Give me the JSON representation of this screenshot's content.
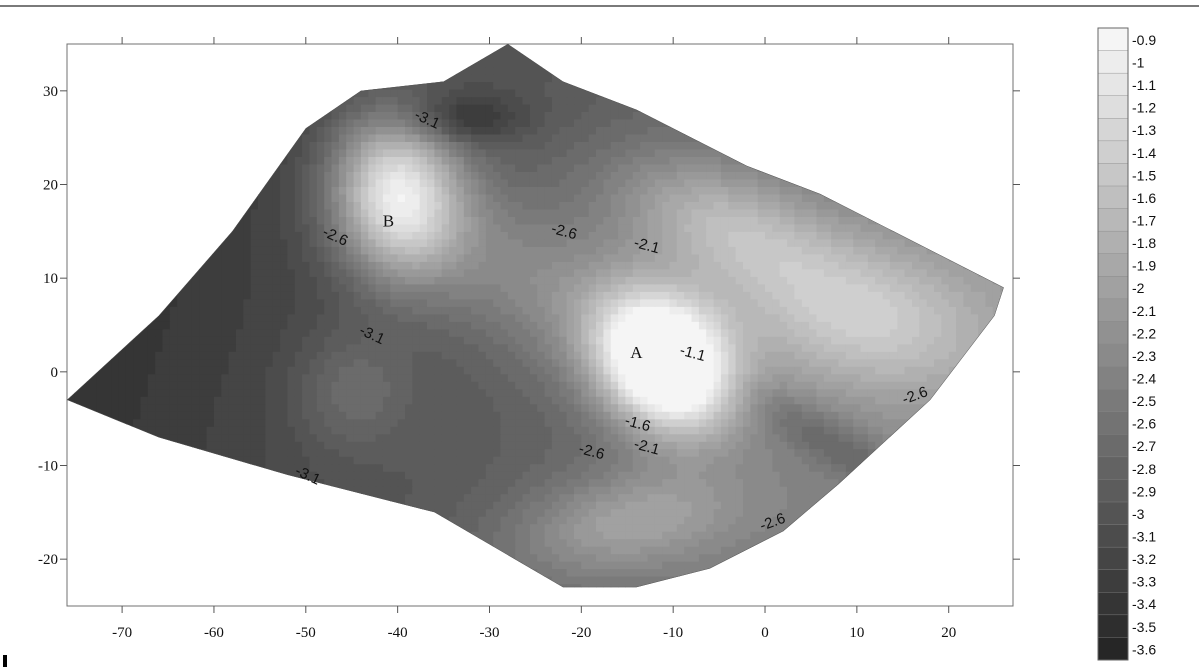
{
  "chart_data": {
    "type": "heatmap",
    "subtype": "filled-contour",
    "title": "",
    "xlabel": "",
    "ylabel": "",
    "xlim": [
      -76,
      27
    ],
    "ylim": [
      -25,
      35
    ],
    "x_ticks": [
      -70,
      -60,
      -50,
      -40,
      -30,
      -20,
      -10,
      0,
      10,
      20
    ],
    "y_ticks": [
      -20,
      -10,
      0,
      10,
      20,
      30
    ],
    "grid": false,
    "colorscale": "grayscale, light = high, dark = low",
    "colorbar": {
      "placement": "right",
      "levels": [
        "-0.9",
        "-1",
        "-1.1",
        "-1.2",
        "-1.3",
        "-1.4",
        "-1.5",
        "-1.6",
        "-1.7",
        "-1.8",
        "-1.9",
        "-2",
        "-2.1",
        "-2.2",
        "-2.3",
        "-2.4",
        "-2.5",
        "-2.6",
        "-2.7",
        "-2.8",
        "-2.9",
        "-3",
        "-3.1",
        "-3.2",
        "-3.3",
        "-3.4",
        "-3.5",
        "-3.6"
      ]
    },
    "contour_labels": [
      {
        "text": "-3.1",
        "x": -37,
        "y": 26.5
      },
      {
        "text": "-2.6",
        "x": -47,
        "y": 14
      },
      {
        "text": "-2.6",
        "x": -22,
        "y": 14.5
      },
      {
        "text": "-2.1",
        "x": -13,
        "y": 13
      },
      {
        "text": "-3.1",
        "x": -43,
        "y": 3.5
      },
      {
        "text": "-1.1",
        "x": -8,
        "y": 1.5
      },
      {
        "text": "-1.6",
        "x": -14,
        "y": -6
      },
      {
        "text": "-2.1",
        "x": -13,
        "y": -8.5
      },
      {
        "text": "-2.6",
        "x": -19,
        "y": -9
      },
      {
        "text": "-3.1",
        "x": -50,
        "y": -11.5
      },
      {
        "text": "-2.6",
        "x": 16.5,
        "y": -3
      },
      {
        "text": "-2.6",
        "x": 1,
        "y": -16.5
      }
    ],
    "point_labels": [
      {
        "text": "A",
        "x": -14,
        "y": 1.5
      },
      {
        "text": "B",
        "x": -41,
        "y": 15.5
      }
    ],
    "surface": {
      "base": -3.6,
      "boundary": [
        [
          -76,
          -3
        ],
        [
          -66,
          6
        ],
        [
          -58,
          15
        ],
        [
          -50,
          26
        ],
        [
          -44,
          30
        ],
        [
          -35,
          31
        ],
        [
          -28,
          35
        ],
        [
          -22,
          31
        ],
        [
          -14,
          28
        ],
        [
          -2,
          22
        ],
        [
          6,
          19
        ],
        [
          14,
          15
        ],
        [
          20,
          12
        ],
        [
          26,
          9
        ],
        [
          25,
          6
        ],
        [
          18,
          -3
        ],
        [
          8,
          -12
        ],
        [
          2,
          -17
        ],
        [
          -6,
          -21
        ],
        [
          -14,
          -23
        ],
        [
          -22,
          -23
        ],
        [
          -36,
          -15
        ],
        [
          -52,
          -11
        ],
        [
          -66,
          -7
        ],
        [
          -76,
          -3
        ]
      ],
      "features": [
        {
          "x": -11,
          "y": 1,
          "sx": 7.5,
          "sy": 6,
          "rot": -42,
          "amp": 2.6
        },
        {
          "x": -40,
          "y": 19,
          "sx": 6.5,
          "sy": 8,
          "rot": 10,
          "amp": 1.9
        },
        {
          "x": -25,
          "y": 10,
          "sx": 18,
          "sy": 8,
          "rot": -25,
          "amp": 0.6
        },
        {
          "x": -5,
          "y": 16,
          "sx": 12,
          "sy": 6,
          "rot": -20,
          "amp": 0.9
        },
        {
          "x": 10,
          "y": 6,
          "sx": 14,
          "sy": 8,
          "rot": -10,
          "amp": 1.0
        },
        {
          "x": -15,
          "y": -16,
          "sx": 12,
          "sy": 5,
          "rot": 10,
          "amp": 0.7
        },
        {
          "x": -45,
          "y": -2,
          "sx": 6,
          "sy": 6,
          "rot": 0,
          "amp": 0.4
        },
        {
          "x": -33,
          "y": 27,
          "sx": 6,
          "sy": 2.5,
          "rot": 0,
          "amp": -0.5
        },
        {
          "x": 8,
          "y": -8,
          "sx": 11,
          "sy": 2.5,
          "rot": -30,
          "amp": -0.4
        }
      ]
    }
  }
}
